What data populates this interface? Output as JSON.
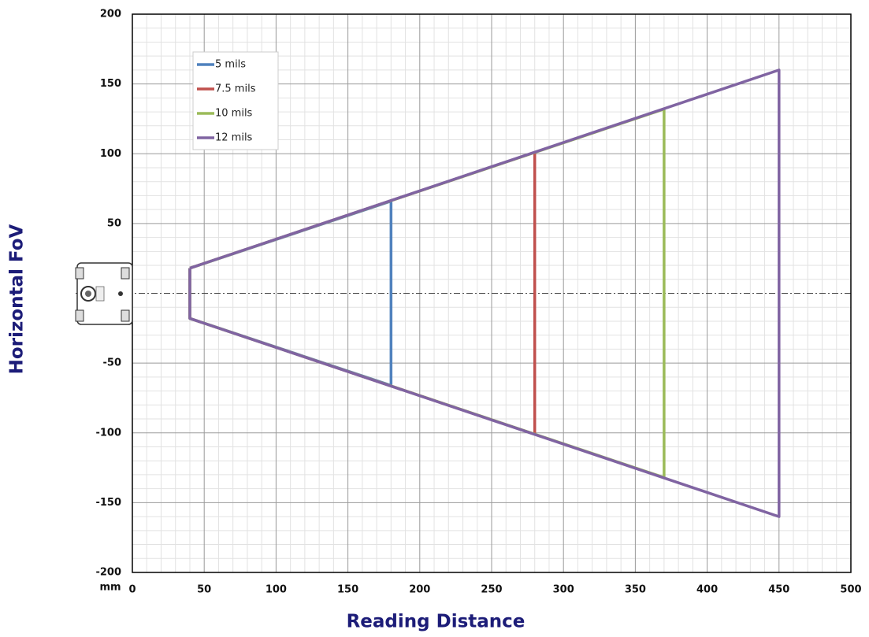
{
  "chart_data": {
    "type": "line",
    "xlabel": "Reading Distance",
    "ylabel": "Horizontal FoV",
    "unit_label": "mm",
    "series": [
      {
        "name": "5 mils",
        "color": "#4f81bd",
        "x": [
          40,
          180,
          180,
          40,
          40
        ],
        "values": [
          18,
          66,
          -66,
          -18,
          18
        ]
      },
      {
        "name": "7.5 mils",
        "color": "#c0504d",
        "x": [
          40,
          280,
          280,
          40,
          40
        ],
        "values": [
          18,
          101,
          -101,
          -18,
          18
        ]
      },
      {
        "name": "10 mils",
        "color": "#9bbb59",
        "x": [
          40,
          370,
          370,
          40,
          40
        ],
        "values": [
          18,
          132,
          -132,
          -18,
          18
        ]
      },
      {
        "name": "12 mils",
        "color": "#8064a2",
        "x": [
          40,
          450,
          450,
          40,
          40
        ],
        "values": [
          18,
          160,
          -160,
          -18,
          18
        ]
      }
    ],
    "xlim": [
      0,
      500
    ],
    "xticks": [
      0,
      50,
      100,
      150,
      200,
      250,
      300,
      350,
      400,
      450,
      500
    ],
    "ylim": [
      -200,
      200
    ],
    "yticks": [
      -200,
      -150,
      -100,
      -50,
      0,
      50,
      100,
      150,
      200
    ],
    "grid": true,
    "minor_grid": true,
    "legend": "upper left"
  }
}
